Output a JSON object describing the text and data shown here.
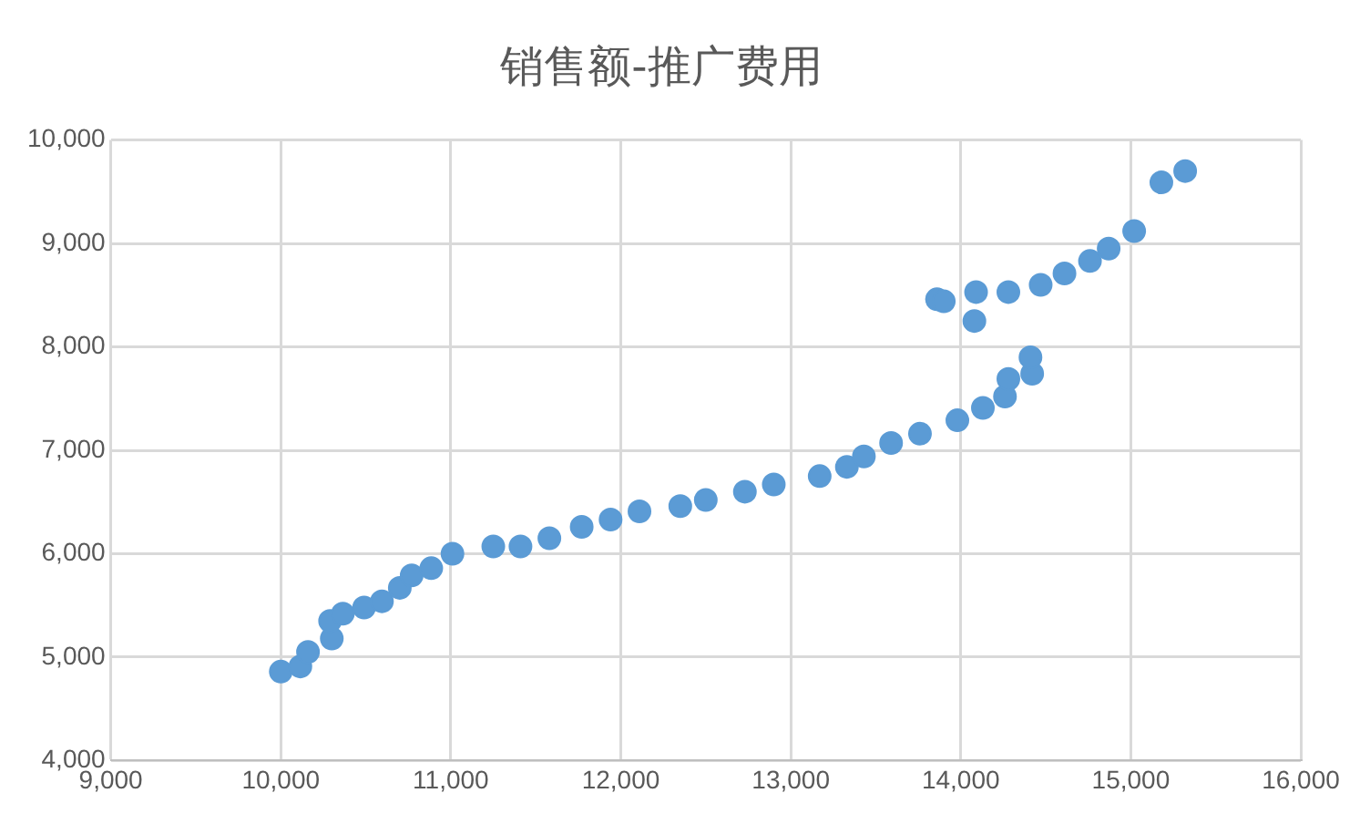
{
  "chart_data": {
    "type": "scatter",
    "title": "销售额-推广费用",
    "x": [
      10000,
      10115,
      10160,
      10300,
      10290,
      10365,
      10490,
      10595,
      10700,
      10770,
      10885,
      11010,
      11250,
      11410,
      11580,
      11770,
      11940,
      12110,
      12350,
      12500,
      12730,
      12900,
      13170,
      13330,
      13430,
      13590,
      13760,
      13980,
      14130,
      14260,
      14280,
      14420,
      14410,
      14080,
      14090,
      13860,
      13900,
      14280,
      14470,
      14610,
      14760,
      14870,
      15020,
      15180,
      15320
    ],
    "series": [
      {
        "color": "#5b9bd5",
        "values": [
          4860,
          4910,
          5050,
          5180,
          5350,
          5420,
          5480,
          5540,
          5670,
          5790,
          5860,
          6000,
          6070,
          6070,
          6150,
          6260,
          6330,
          6410,
          6460,
          6520,
          6600,
          6670,
          6750,
          6840,
          6940,
          7070,
          7160,
          7290,
          7410,
          7520,
          7690,
          7740,
          7900,
          8250,
          8530,
          8460,
          8440,
          8530,
          8600,
          8710,
          8830,
          8950,
          9120,
          9590,
          9700
        ]
      }
    ],
    "xlim": [
      9000,
      16000
    ],
    "xticks": [
      {
        "value": 9000,
        "label": "9,000"
      },
      {
        "value": 10000,
        "label": "10,000"
      },
      {
        "value": 11000,
        "label": "11,000"
      },
      {
        "value": 12000,
        "label": "12,000"
      },
      {
        "value": 13000,
        "label": "13,000"
      },
      {
        "value": 14000,
        "label": "14,000"
      },
      {
        "value": 15000,
        "label": "15,000"
      },
      {
        "value": 16000,
        "label": "16,000"
      }
    ],
    "ylim": [
      4000,
      10000
    ],
    "yticks": [
      {
        "value": 4000,
        "label": "4,000"
      },
      {
        "value": 5000,
        "label": "5,000"
      },
      {
        "value": 6000,
        "label": "6,000"
      },
      {
        "value": 7000,
        "label": "7,000"
      },
      {
        "value": 8000,
        "label": "8,000"
      },
      {
        "value": 9000,
        "label": "9,000"
      },
      {
        "value": 10000,
        "label": "10,000"
      }
    ],
    "grid": true,
    "legend": false,
    "marker": "circle"
  }
}
